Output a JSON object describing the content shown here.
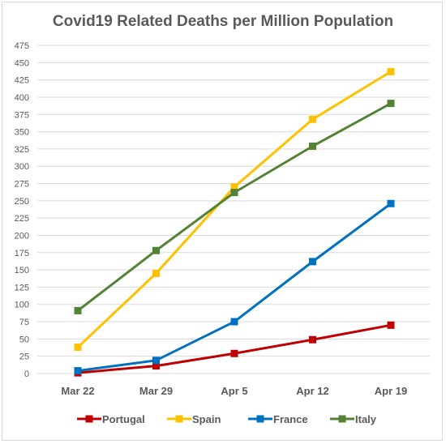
{
  "chart_data": {
    "type": "line",
    "title": "Covid19 Related Deaths per Million Population",
    "xlabel": "",
    "ylabel": "",
    "categories": [
      "Mar 22",
      "Mar 29",
      "Apr 5",
      "Apr 12",
      "Apr 19"
    ],
    "ylim": [
      0,
      475
    ],
    "yticks": [
      0,
      25,
      50,
      75,
      100,
      125,
      150,
      175,
      200,
      225,
      250,
      275,
      300,
      325,
      350,
      375,
      400,
      425,
      450,
      475
    ],
    "grid": true,
    "legend_position": "bottom",
    "series": [
      {
        "name": "Portugal",
        "color": "#c00000",
        "values": [
          1,
          11,
          29,
          49,
          70
        ]
      },
      {
        "name": "Spain",
        "color": "#ffc000",
        "values": [
          38,
          145,
          270,
          368,
          437
        ]
      },
      {
        "name": "France",
        "color": "#0070c0",
        "values": [
          4,
          19,
          75,
          162,
          246
        ]
      },
      {
        "name": "Italy",
        "color": "#548235",
        "values": [
          91,
          178,
          262,
          329,
          391
        ]
      }
    ]
  }
}
